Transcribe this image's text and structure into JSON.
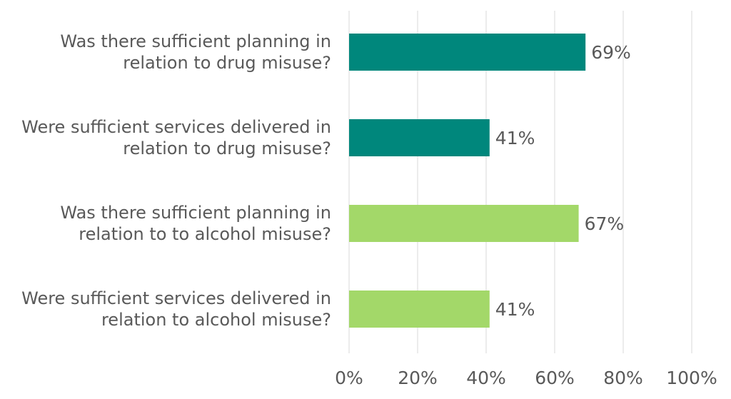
{
  "chart_data": {
    "type": "bar",
    "categories": [
      "Was there sufficient planning in relation to drug misuse?",
      "Were sufficient services delivered in relation to drug misuse?",
      "Was there sufficient planning in relation to to alcohol misuse?",
      "Were sufficient services delivered in relation to alcohol misuse?"
    ],
    "values": [
      69,
      41,
      67,
      41
    ],
    "value_labels": [
      "69%",
      "41%",
      "67%",
      "41%"
    ],
    "colors": [
      "#00877c",
      "#00877c",
      "#a3d869",
      "#a3d869"
    ],
    "orientation": "horizontal",
    "xlim": [
      0,
      100
    ],
    "xticks": [
      {
        "value": 0,
        "label": "0%"
      },
      {
        "value": 20,
        "label": "20%"
      },
      {
        "value": 40,
        "label": "40%"
      },
      {
        "value": 60,
        "label": "60%"
      },
      {
        "value": 80,
        "label": "80%"
      },
      {
        "value": 100,
        "label": "100%"
      }
    ],
    "grid": true
  }
}
